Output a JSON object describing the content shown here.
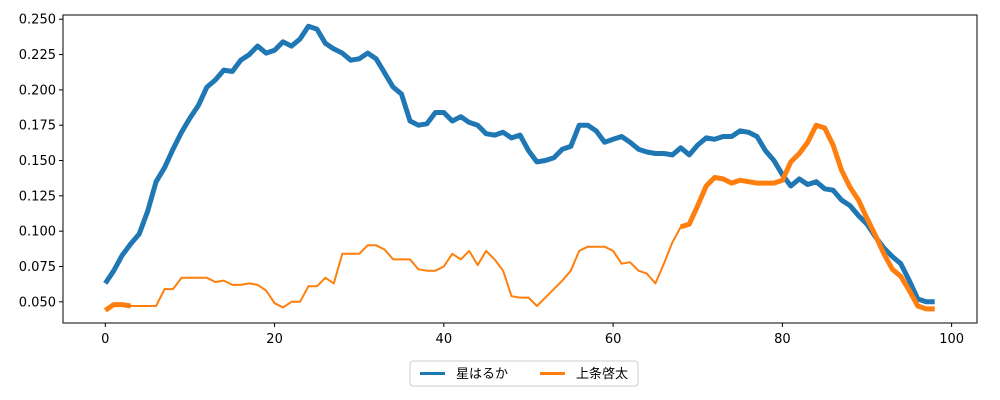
{
  "chart_data": {
    "type": "line",
    "title": "",
    "xlabel": "",
    "ylabel": "",
    "xlim": [
      -5,
      103
    ],
    "ylim": [
      0.035,
      0.253
    ],
    "x_ticks": [
      0,
      20,
      40,
      60,
      80,
      100
    ],
    "y_ticks": [
      0.05,
      0.075,
      0.1,
      0.125,
      0.15,
      0.175,
      0.2,
      0.225,
      0.25
    ],
    "grid": false,
    "legend_position": "bottom-center",
    "series": [
      {
        "name": "星はるか",
        "color": "#1f77b4",
        "x": [
          0,
          1,
          2,
          3,
          4,
          5,
          6,
          7,
          8,
          9,
          10,
          11,
          12,
          13,
          14,
          15,
          16,
          17,
          18,
          19,
          20,
          21,
          22,
          23,
          24,
          25,
          26,
          27,
          28,
          29,
          30,
          31,
          32,
          33,
          34,
          35,
          36,
          37,
          38,
          39,
          40,
          41,
          42,
          43,
          44,
          45,
          46,
          47,
          48,
          49,
          50,
          51,
          52,
          53,
          54,
          55,
          56,
          57,
          58,
          59,
          60,
          61,
          62,
          63,
          64,
          65,
          66,
          67,
          68,
          69,
          70,
          71,
          72,
          73,
          74,
          75,
          76,
          77,
          78,
          79,
          80,
          81,
          82,
          83,
          84,
          85,
          86,
          87,
          88,
          89,
          90,
          91,
          92,
          93,
          94,
          95,
          96,
          97,
          98
        ],
        "y": [
          0.063,
          0.072,
          0.083,
          0.091,
          0.098,
          0.114,
          0.135,
          0.145,
          0.158,
          0.17,
          0.18,
          0.189,
          0.202,
          0.207,
          0.214,
          0.213,
          0.221,
          0.225,
          0.231,
          0.226,
          0.228,
          0.234,
          0.231,
          0.236,
          0.245,
          0.243,
          0.233,
          0.229,
          0.226,
          0.221,
          0.222,
          0.226,
          0.222,
          0.212,
          0.202,
          0.197,
          0.178,
          0.175,
          0.176,
          0.184,
          0.184,
          0.178,
          0.181,
          0.177,
          0.175,
          0.169,
          0.168,
          0.17,
          0.166,
          0.168,
          0.157,
          0.149,
          0.15,
          0.152,
          0.158,
          0.16,
          0.175,
          0.175,
          0.171,
          0.163,
          0.165,
          0.167,
          0.163,
          0.158,
          0.156,
          0.155,
          0.155,
          0.154,
          0.159,
          0.154,
          0.161,
          0.166,
          0.165,
          0.167,
          0.167,
          0.171,
          0.17,
          0.167,
          0.157,
          0.15,
          0.14,
          0.132,
          0.137,
          0.133,
          0.135,
          0.13,
          0.129,
          0.122,
          0.118,
          0.111,
          0.105,
          0.096,
          0.088,
          0.082,
          0.077,
          0.065,
          0.052,
          0.05,
          0.05
        ],
        "widths": [
          5
        ]
      },
      {
        "name": "上条啓太",
        "color": "#ff7f0e",
        "x": [
          0,
          1,
          2,
          3,
          4,
          5,
          6,
          7,
          8,
          9,
          10,
          11,
          12,
          13,
          14,
          15,
          16,
          17,
          18,
          19,
          20,
          21,
          22,
          23,
          24,
          25,
          26,
          27,
          28,
          29,
          30,
          31,
          32,
          33,
          34,
          35,
          36,
          37,
          38,
          39,
          40,
          41,
          42,
          43,
          44,
          45,
          46,
          47,
          48,
          49,
          50,
          51,
          52,
          53,
          54,
          55,
          56,
          57,
          58,
          59,
          60,
          61,
          62,
          63,
          64,
          65,
          66,
          67,
          68,
          69,
          70,
          71,
          72,
          73,
          74,
          75,
          76,
          77,
          78,
          79,
          80,
          81,
          82,
          83,
          84,
          85,
          86,
          87,
          88,
          89,
          90,
          91,
          92,
          93,
          94,
          95,
          96,
          97,
          98
        ],
        "y": [
          0.044,
          0.048,
          0.048,
          0.047,
          0.047,
          0.047,
          0.047,
          0.059,
          0.059,
          0.067,
          0.067,
          0.067,
          0.067,
          0.064,
          0.065,
          0.062,
          0.062,
          0.063,
          0.062,
          0.058,
          0.049,
          0.046,
          0.05,
          0.05,
          0.061,
          0.061,
          0.067,
          0.063,
          0.084,
          0.084,
          0.084,
          0.09,
          0.09,
          0.087,
          0.08,
          0.08,
          0.08,
          0.073,
          0.072,
          0.072,
          0.075,
          0.084,
          0.08,
          0.086,
          0.076,
          0.086,
          0.08,
          0.072,
          0.054,
          0.053,
          0.053,
          0.047,
          0.053,
          0.059,
          0.065,
          0.072,
          0.086,
          0.089,
          0.089,
          0.089,
          0.086,
          0.077,
          0.078,
          0.072,
          0.07,
          0.063,
          0.077,
          0.092,
          0.103,
          0.105,
          0.118,
          0.132,
          0.138,
          0.137,
          0.134,
          0.136,
          0.135,
          0.134,
          0.134,
          0.134,
          0.136,
          0.149,
          0.155,
          0.163,
          0.175,
          0.173,
          0.161,
          0.143,
          0.131,
          0.122,
          0.109,
          0.097,
          0.084,
          0.073,
          0.068,
          0.058,
          0.047,
          0.045,
          0.045
        ],
        "widths": [
          5,
          5,
          5,
          2,
          2,
          2,
          2,
          2,
          2,
          2,
          2,
          2,
          2,
          2,
          2,
          2,
          2,
          2,
          2,
          2,
          2,
          2,
          2,
          2,
          2,
          2,
          2,
          2,
          2,
          2,
          2,
          2,
          2,
          2,
          2,
          2,
          2,
          2,
          2,
          2,
          2,
          2,
          2,
          2,
          2,
          2,
          2,
          2,
          2,
          2,
          2,
          2,
          2,
          2,
          2,
          2,
          2,
          2,
          2,
          2,
          2,
          2,
          2,
          2,
          2,
          2,
          2,
          2,
          5,
          5,
          5,
          5,
          5,
          5,
          5,
          5,
          5,
          5,
          5,
          5,
          5,
          5,
          5,
          5,
          5,
          5,
          5,
          5,
          5,
          5,
          5,
          5,
          5,
          5,
          5,
          5,
          5,
          5
        ]
      }
    ]
  }
}
